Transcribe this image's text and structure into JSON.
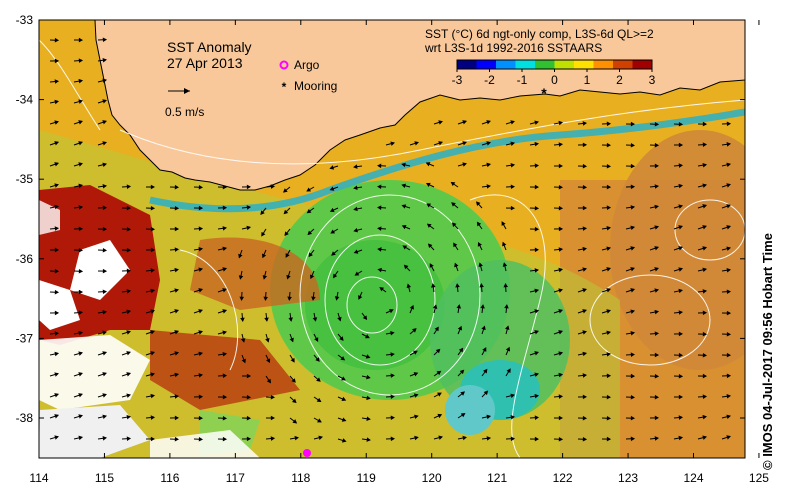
{
  "map": {
    "title": "SST Anomaly",
    "date": "27 Apr 2013",
    "scale_label": "0.5 m/s",
    "legend": [
      {
        "label": "Argo",
        "color": "#ff00ff",
        "icon": "circle-marker-icon"
      },
      {
        "label": "Mooring",
        "color": "#000000",
        "icon": "asterisk-marker-icon"
      }
    ],
    "colorbar_title_1": "SST (°C) 6d ngt-only comp, L3S-6d QL>=2",
    "colorbar_title_2": "wrt L3S-1d 1992-2016 SSTAARS",
    "colorbar_ticks": [
      "-3",
      "-2",
      "-1",
      "0",
      "1",
      "2",
      "3"
    ],
    "colorbar_colors": [
      "#000080",
      "#0000ff",
      "#0090ff",
      "#00e0e0",
      "#30c030",
      "#c0e000",
      "#ffe000",
      "#ff9000",
      "#d04000",
      "#a00000"
    ],
    "lon_ticks": [
      "114",
      "115",
      "116",
      "117",
      "118",
      "119",
      "120",
      "121",
      "122",
      "123",
      "124",
      "125"
    ],
    "lat_ticks": [
      "-33",
      "-34",
      "-35",
      "-36",
      "-37",
      "-38"
    ],
    "land_color": "#f8c89a",
    "credit": "©  IMOS 04-Jul-2017 09:56 Hobart Time"
  }
}
